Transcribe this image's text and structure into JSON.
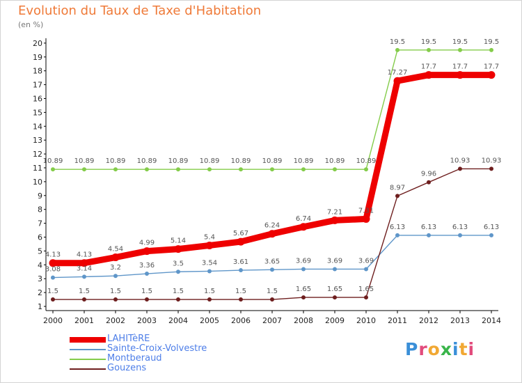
{
  "title": "Evolution du Taux de Taxe d'Habitation",
  "unit": "(en %)",
  "logo": {
    "text": "Proxiti",
    "letter_colors": [
      "#3a8fd8",
      "#e24b7c",
      "#f1a833",
      "#39b54a",
      "#3a8fd8",
      "#f1a833",
      "#e24b7c"
    ]
  },
  "chart_data": {
    "type": "line",
    "title": "Evolution du Taux de Taxe d'Habitation",
    "ylabel": "(en %)",
    "xlabel": "",
    "x": [
      "2000",
      "2001",
      "2002",
      "2003",
      "2004",
      "2005",
      "2006",
      "2007",
      "2008",
      "2009",
      "2010",
      "2011",
      "2012",
      "2013",
      "2014"
    ],
    "ylim": [
      1,
      20
    ],
    "yticks": [
      1,
      2,
      3,
      4,
      5,
      6,
      7,
      8,
      9,
      10,
      11,
      12,
      13,
      14,
      15,
      16,
      17,
      18,
      19,
      20
    ],
    "grid": false,
    "legend_position": "bottom-left",
    "series": [
      {
        "name": "LAHITèRE",
        "color": "#ee0000",
        "style": "bold",
        "values": [
          4.13,
          4.13,
          4.54,
          4.99,
          5.14,
          5.4,
          5.67,
          6.24,
          6.74,
          7.21,
          7.31,
          17.27,
          17.7,
          17.7,
          17.7
        ],
        "labels": [
          "4.13",
          "4.13",
          "4.54",
          "4.99",
          "5.14",
          "5.4",
          "5.67",
          "6.24",
          "6.74",
          "7.21",
          "7.31",
          "17.27",
          "17.7",
          "17.7",
          "17.7"
        ]
      },
      {
        "name": "Sainte-Croix-Volvestre",
        "color": "#5f96c9",
        "style": "thin",
        "values": [
          3.08,
          3.14,
          3.2,
          3.36,
          3.5,
          3.54,
          3.61,
          3.65,
          3.69,
          3.69,
          3.69,
          6.13,
          6.13,
          6.13,
          6.13
        ],
        "labels": [
          "3.08",
          "3.14",
          "3.2",
          "3.36",
          "3.5",
          "3.54",
          "3.61",
          "3.65",
          "3.69",
          "3.69",
          "3.69",
          "6.13",
          "6.13",
          "6.13",
          "6.13"
        ]
      },
      {
        "name": "Montberaud",
        "color": "#84cc4a",
        "style": "thin",
        "values": [
          10.89,
          10.89,
          10.89,
          10.89,
          10.89,
          10.89,
          10.89,
          10.89,
          10.89,
          10.89,
          10.89,
          19.5,
          19.5,
          19.5,
          19.5
        ],
        "labels": [
          "10.89",
          "10.89",
          "10.89",
          "10.89",
          "10.89",
          "10.89",
          "10.89",
          "10.89",
          "10.89",
          "10.89",
          "10.89",
          "19.5",
          "19.5",
          "19.5",
          "19.5"
        ]
      },
      {
        "name": "Gouzens",
        "color": "#6e1e1e",
        "style": "thin",
        "values": [
          1.5,
          1.5,
          1.5,
          1.5,
          1.5,
          1.5,
          1.5,
          1.5,
          1.65,
          1.65,
          1.65,
          8.97,
          9.96,
          10.93,
          10.93
        ],
        "labels": [
          "1.5",
          "1.5",
          "1.5",
          "1.5",
          "1.5",
          "1.5",
          "1.5",
          "1.5",
          "1.65",
          "1.65",
          "1.65",
          "8.97",
          "9.96",
          "10.93",
          "10.93"
        ]
      }
    ]
  }
}
